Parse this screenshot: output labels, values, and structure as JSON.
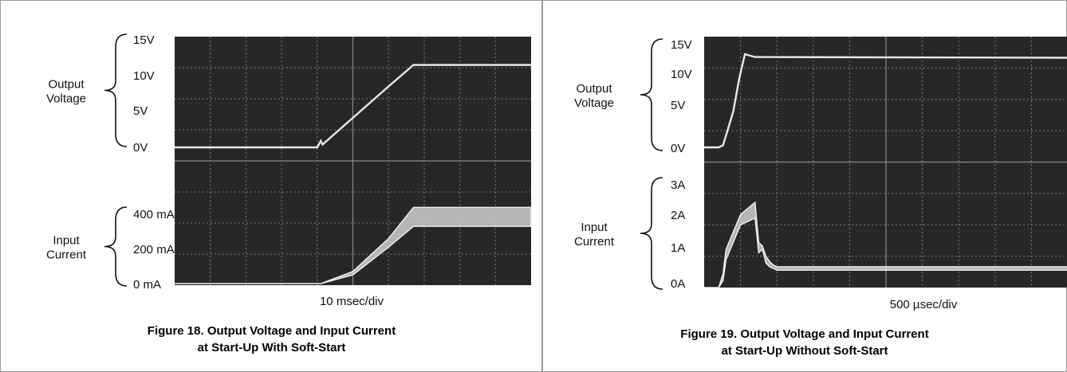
{
  "chart_data": [
    {
      "type": "line",
      "caption_line1": "Figure 18. Output Voltage and Input Current",
      "caption_line2": "at Start-Up With Soft-Start",
      "xlabel": "10 msec/div",
      "divisions_x": 10,
      "divisions_y": 8,
      "top_group_label": [
        "Output",
        "Voltage"
      ],
      "bottom_group_label": [
        "Input",
        "Current"
      ],
      "voltage_ticks": [
        "15V",
        "10V",
        "5V",
        "0V"
      ],
      "current_ticks": [
        "400 mA",
        "200 mA",
        "0 mA"
      ],
      "series": [
        {
          "name": "Output Voltage",
          "unit": "V",
          "x_ms": [
            0,
            40,
            41,
            41.5,
            60,
            67,
            100
          ],
          "y": [
            0,
            0,
            0.9,
            0.4,
            8.5,
            11.5,
            11.5
          ]
        },
        {
          "name": "Input Current",
          "unit": "mA",
          "x_ms": [
            0,
            41,
            50,
            60,
            67,
            100
          ],
          "y_low": [
            0,
            0,
            50,
            210,
            330,
            330
          ],
          "y_high": [
            0,
            0,
            70,
            260,
            440,
            440
          ]
        }
      ]
    },
    {
      "type": "line",
      "caption_line1": "Figure 19. Output Voltage and Input Current",
      "caption_line2": "at Start-Up Without Soft-Start",
      "xlabel": "500 µsec/div",
      "divisions_x": 10,
      "divisions_y": 8,
      "top_group_label": [
        "Output",
        "Voltage"
      ],
      "bottom_group_label": [
        "Input",
        "Current"
      ],
      "voltage_ticks": [
        "15V",
        "10V",
        "5V",
        "0V"
      ],
      "current_ticks": [
        "3A",
        "2A",
        "1A",
        "0A"
      ],
      "series": [
        {
          "name": "Output Voltage",
          "unit": "V",
          "x_us": [
            0,
            200,
            260,
            400,
            480,
            560,
            700,
            5000
          ],
          "y": [
            0,
            0,
            0.3,
            5.0,
            9.5,
            13.0,
            12.6,
            12.5
          ]
        },
        {
          "name": "Input Current",
          "unit": "A",
          "x_us": [
            0,
            200,
            260,
            300,
            500,
            700,
            750,
            800,
            850,
            900,
            950,
            1000,
            5000
          ],
          "y_low": [
            0,
            0,
            0.2,
            0.8,
            1.8,
            2.0,
            1.0,
            1.1,
            0.7,
            0.6,
            0.55,
            0.5,
            0.5
          ],
          "y_high": [
            0,
            0,
            0.4,
            1.1,
            2.1,
            2.45,
            1.3,
            1.2,
            0.9,
            0.75,
            0.65,
            0.6,
            0.6
          ]
        }
      ]
    }
  ]
}
